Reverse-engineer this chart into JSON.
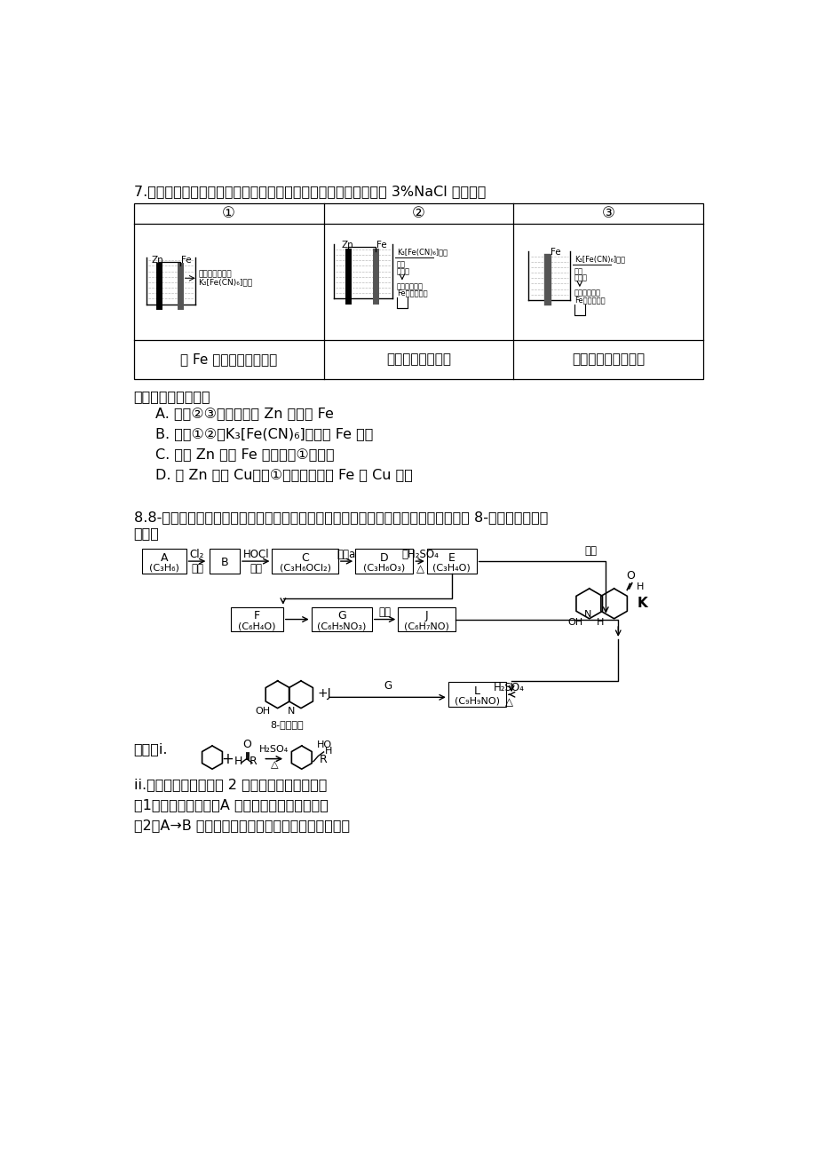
{
  "bg_color": "#ffffff",
  "title_q7": "7.验证牺牲阳极的阴极保护法，实验如下（烧杯内均为经过酸化的 3%NaCl 溶液）。",
  "table_headers": [
    "①",
    "②",
    "③"
  ],
  "table_desc1": "在 Fe 表面生成蓝色沉淀",
  "table_desc2": "试管内无明显变化",
  "table_desc3": "试管内生成蓝色沉淀",
  "q7_intro": "下列说法不正确的是",
  "q7_A": "A. 对比②③，可以判定 Zn 保护了 Fe",
  "q7_B": "B. 对比①②，K₃[Fe(CN)₆]可能将 Fe 氧化",
  "q7_C": "C. 验证 Zn 保护 Fe 时不能用①的方法",
  "q7_D": "D. 将 Zn 换成 Cu，用①的方法可判断 Fe 比 Cu 活泼",
  "q8_line1": "8.8-羟基喹啉被广泛用作金属离子的络合剂和萃取剂，也是重要的医药中间体。下图是 8-羟基喹啉的合成",
  "q8_line2": "路线。",
  "q8_known_i": "已知：i.",
  "q8_known_ii": "ii.同一个碳原子上连有 2 个羟基的分子不稳定。",
  "q8_q1": "（1）按官能团分类，A 的类别是＿＿＿＿＿＿。",
  "q8_q2": "（2）A→B 的化学方程式是＿＿＿＿＿＿＿＿＿＿。"
}
